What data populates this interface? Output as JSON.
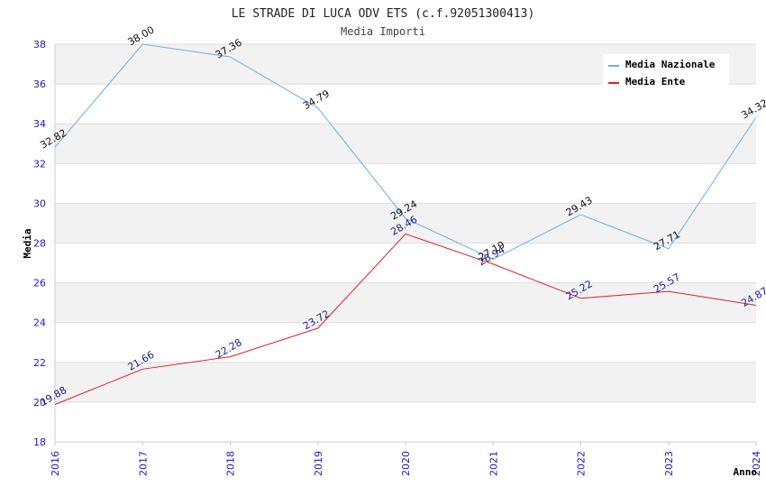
{
  "chart_data": {
    "type": "line",
    "title": "LE STRADE DI LUCA ODV ETS (c.f.92051300413)",
    "subtitle": "Media Importi",
    "xlabel": "Anno",
    "ylabel": "Media",
    "categories": [
      "2016",
      "2017",
      "2018",
      "2019",
      "2020",
      "2021",
      "2022",
      "2023",
      "2024"
    ],
    "ylim": [
      18,
      38
    ],
    "yticks": [
      "18",
      "20",
      "22",
      "24",
      "26",
      "28",
      "30",
      "32",
      "34",
      "36",
      "38"
    ],
    "grid": true,
    "legend_position": "top-right",
    "series": [
      {
        "name": "Media Nazionale",
        "color": "#6aaee8",
        "label_color": "#111111",
        "values": [
          32.82,
          38.0,
          37.36,
          34.79,
          29.24,
          27.19,
          29.43,
          27.71,
          34.32
        ],
        "labels": [
          "32.82",
          "38.00",
          "37.36",
          "34.79",
          "29.24",
          "27.19",
          "29.43",
          "27.71",
          "34.32"
        ]
      },
      {
        "name": "Media Ente",
        "color": "#e02020",
        "label_color": "#1a1a99",
        "values": [
          19.88,
          21.66,
          22.28,
          23.72,
          28.46,
          26.94,
          25.22,
          25.57,
          24.87
        ],
        "labels": [
          "19.88",
          "21.66",
          "22.28",
          "23.72",
          "28.46",
          "26.94",
          "25.22",
          "25.57",
          "24.87"
        ]
      }
    ]
  }
}
